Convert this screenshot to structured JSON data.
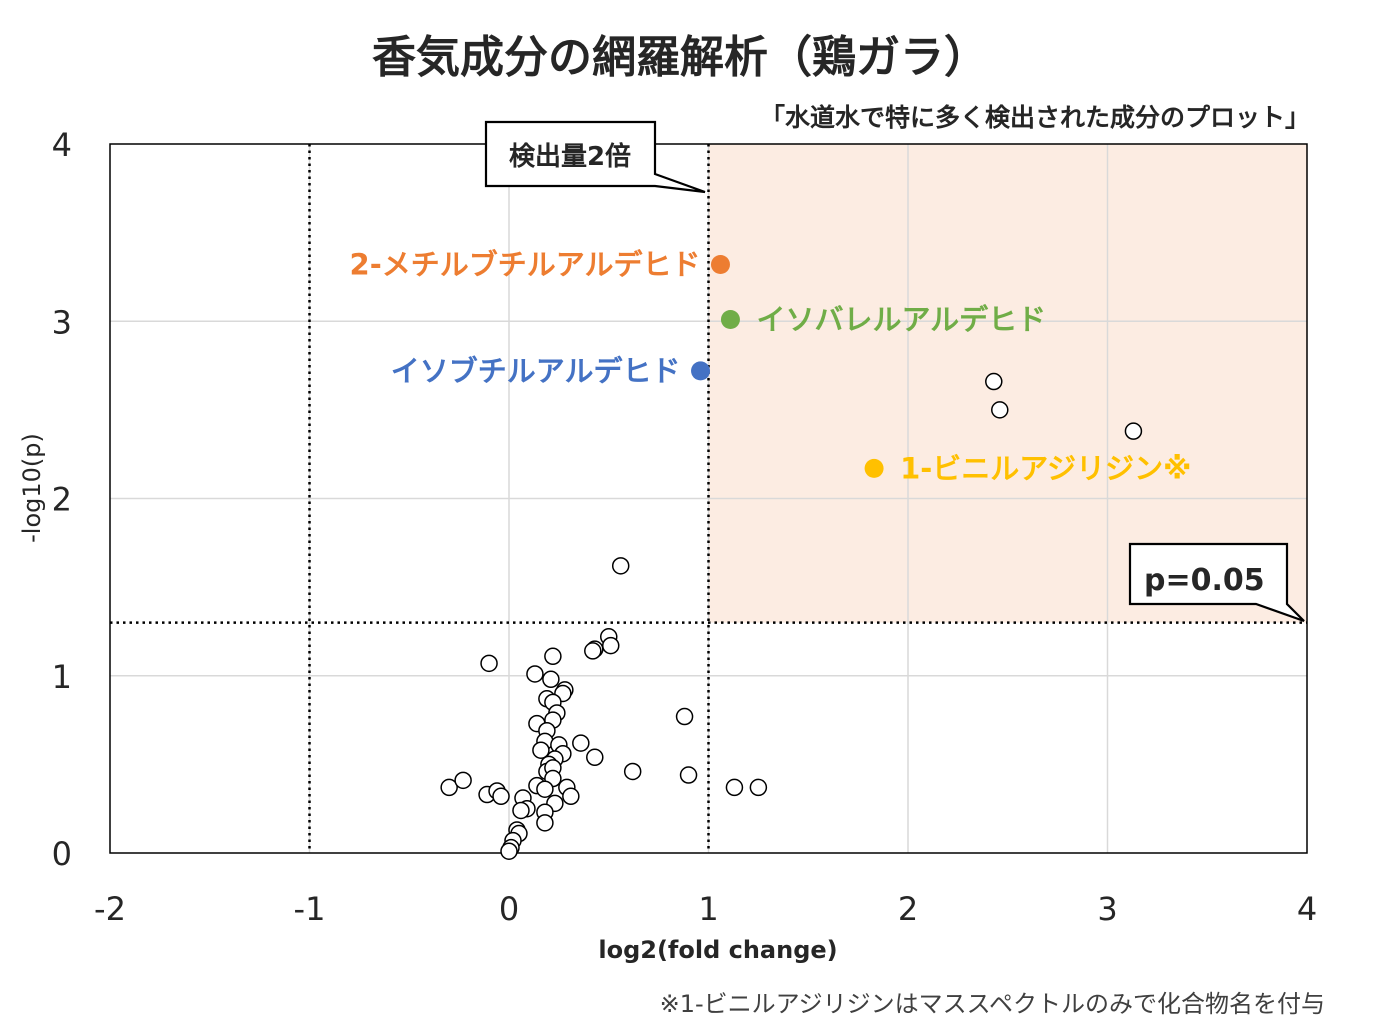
{
  "chart_data": {
    "type": "scatter",
    "title": "香気成分の網羅解析（鶏ガラ）",
    "subtitle": "「水道水で特に多く検出された成分のプロット」",
    "xlabel": "log2(fold change)",
    "ylabel": "-log10(p)",
    "xlim": [
      -2,
      4
    ],
    "ylim": [
      0,
      4
    ],
    "x_ticks": [
      "-2",
      "-1",
      "0",
      "1",
      "2",
      "3",
      "4"
    ],
    "y_ticks": [
      "0",
      "1",
      "2",
      "3",
      "4"
    ],
    "grid": true,
    "threshold_lines": {
      "x": [
        -1,
        1
      ],
      "y": 1.3
    },
    "highlight_region": {
      "x_min": 1,
      "x_max": 4,
      "y_min": 1.3,
      "y_max": 4,
      "color": "#fcece2"
    },
    "callouts": {
      "fold_label": "検出量2倍",
      "p_label": "p=0.05"
    },
    "highlighted": [
      {
        "name": "2-メチルブチルアルデヒド",
        "x": 1.06,
        "y": 3.32,
        "color": "#ed7d31",
        "label_side": "left"
      },
      {
        "name": "イソバレルアルデヒド",
        "x": 1.11,
        "y": 3.01,
        "color": "#70ad47",
        "label_side": "right"
      },
      {
        "name": "イソブチルアルデヒド",
        "x": 0.96,
        "y": 2.72,
        "color": "#4472c4",
        "label_side": "left"
      },
      {
        "name": "1-ビニルアジリジン※",
        "x": 1.83,
        "y": 2.17,
        "color": "#ffc000",
        "label_side": "right"
      }
    ],
    "points": [
      {
        "x": 2.43,
        "y": 2.66
      },
      {
        "x": 2.46,
        "y": 2.5
      },
      {
        "x": 3.13,
        "y": 2.38
      },
      {
        "x": 0.56,
        "y": 1.62
      },
      {
        "x": 0.5,
        "y": 1.22
      },
      {
        "x": 0.51,
        "y": 1.17
      },
      {
        "x": 0.43,
        "y": 1.15
      },
      {
        "x": 0.42,
        "y": 1.14
      },
      {
        "x": 0.22,
        "y": 1.11
      },
      {
        "x": -0.1,
        "y": 1.07
      },
      {
        "x": 0.13,
        "y": 1.01
      },
      {
        "x": 0.21,
        "y": 0.98
      },
      {
        "x": 0.28,
        "y": 0.92
      },
      {
        "x": 0.27,
        "y": 0.9
      },
      {
        "x": 0.19,
        "y": 0.87
      },
      {
        "x": 0.22,
        "y": 0.85
      },
      {
        "x": 0.24,
        "y": 0.79
      },
      {
        "x": 0.22,
        "y": 0.75
      },
      {
        "x": 0.14,
        "y": 0.73
      },
      {
        "x": 0.19,
        "y": 0.69
      },
      {
        "x": 0.18,
        "y": 0.63
      },
      {
        "x": 0.25,
        "y": 0.61
      },
      {
        "x": 0.36,
        "y": 0.62
      },
      {
        "x": 0.16,
        "y": 0.58
      },
      {
        "x": 0.27,
        "y": 0.56
      },
      {
        "x": 0.23,
        "y": 0.53
      },
      {
        "x": 0.2,
        "y": 0.5
      },
      {
        "x": 0.43,
        "y": 0.54
      },
      {
        "x": 0.19,
        "y": 0.46
      },
      {
        "x": 0.22,
        "y": 0.48
      },
      {
        "x": 0.62,
        "y": 0.46
      },
      {
        "x": 0.88,
        "y": 0.77
      },
      {
        "x": 0.9,
        "y": 0.44
      },
      {
        "x": 1.13,
        "y": 0.37
      },
      {
        "x": 1.25,
        "y": 0.37
      },
      {
        "x": 0.22,
        "y": 0.42
      },
      {
        "x": 0.14,
        "y": 0.38
      },
      {
        "x": 0.29,
        "y": 0.37
      },
      {
        "x": 0.18,
        "y": 0.36
      },
      {
        "x": 0.31,
        "y": 0.32
      },
      {
        "x": -0.3,
        "y": 0.37
      },
      {
        "x": -0.23,
        "y": 0.41
      },
      {
        "x": -0.11,
        "y": 0.33
      },
      {
        "x": -0.06,
        "y": 0.35
      },
      {
        "x": -0.04,
        "y": 0.32
      },
      {
        "x": 0.07,
        "y": 0.31
      },
      {
        "x": 0.23,
        "y": 0.28
      },
      {
        "x": 0.09,
        "y": 0.25
      },
      {
        "x": 0.06,
        "y": 0.24
      },
      {
        "x": 0.18,
        "y": 0.23
      },
      {
        "x": 0.18,
        "y": 0.17
      },
      {
        "x": 0.04,
        "y": 0.13
      },
      {
        "x": 0.05,
        "y": 0.11
      },
      {
        "x": 0.02,
        "y": 0.07
      },
      {
        "x": 0.01,
        "y": 0.03
      },
      {
        "x": 0.0,
        "y": 0.01
      }
    ],
    "footnote": "※1-ビニルアジリジンはマススペクトルのみで化合物名を付与"
  }
}
